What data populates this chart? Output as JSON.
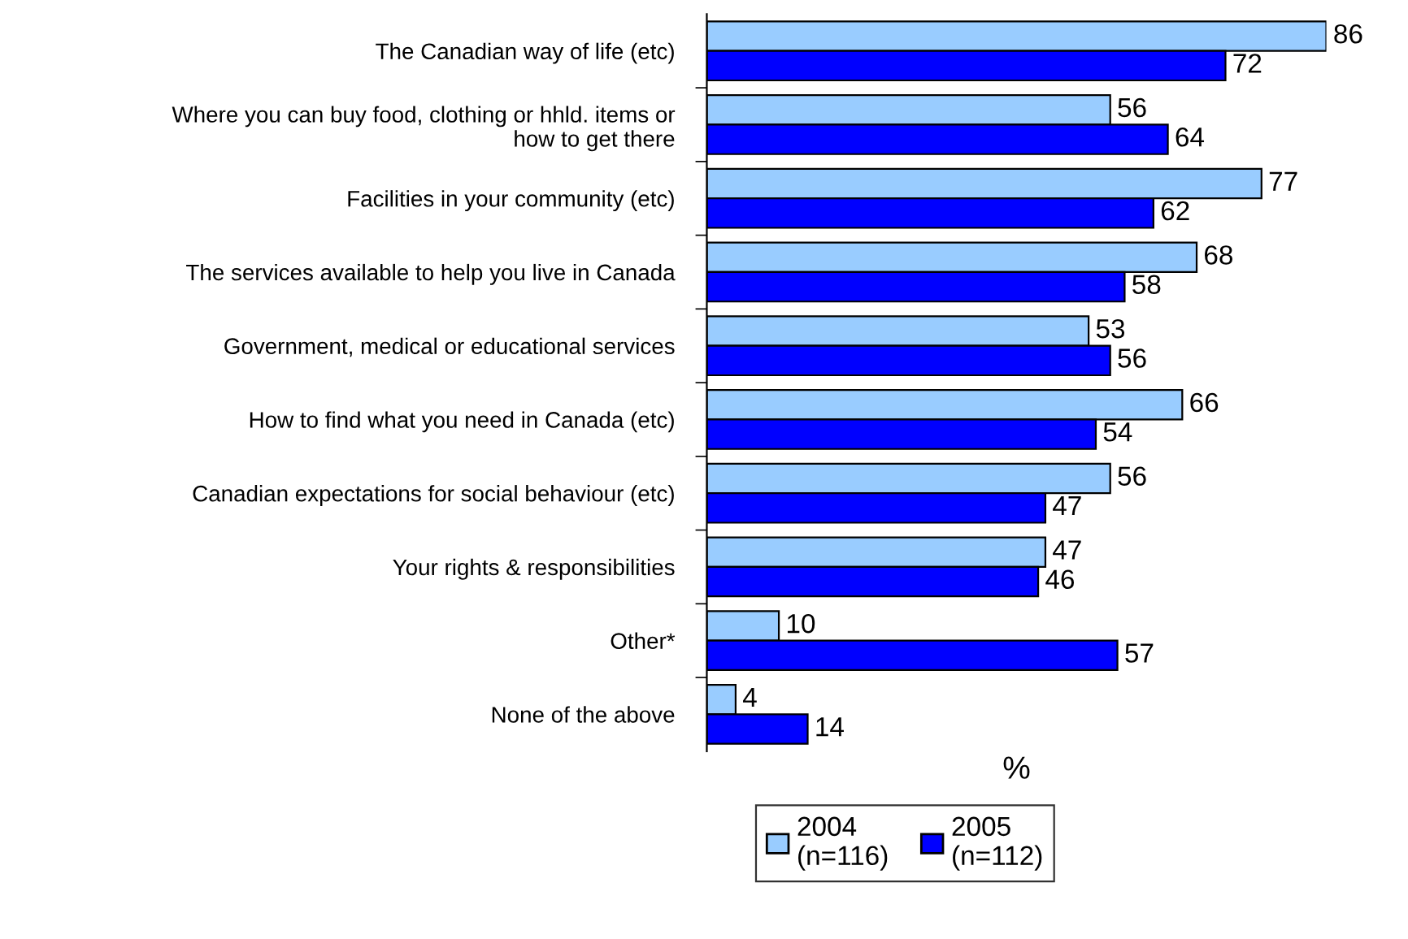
{
  "chart_data": {
    "type": "bar",
    "orientation": "horizontal",
    "xlabel": "%",
    "categories": [
      "The Canadian way of life (etc)",
      "Where you can buy food, clothing or hhld. items or\nhow to get there",
      "Facilities in your community (etc)",
      "The services available to help you live in Canada",
      "Government, medical or educational services",
      "How to find what you need in Canada (etc)",
      "Canadian expectations for social behaviour (etc)",
      "Your rights & responsibilities",
      "Other*",
      "None of the above"
    ],
    "series": [
      {
        "name": "2004\n(n=116)",
        "color": "#99ccff",
        "values": [
          86,
          56,
          77,
          68,
          53,
          66,
          56,
          47,
          10,
          4
        ]
      },
      {
        "name": "2005\n(n=112)",
        "color": "#0000ff",
        "values": [
          72,
          64,
          62,
          58,
          56,
          54,
          47,
          46,
          57,
          14
        ]
      }
    ],
    "data_labels": true,
    "legend": "bottom",
    "grid": false,
    "tick_labels": "y"
  }
}
